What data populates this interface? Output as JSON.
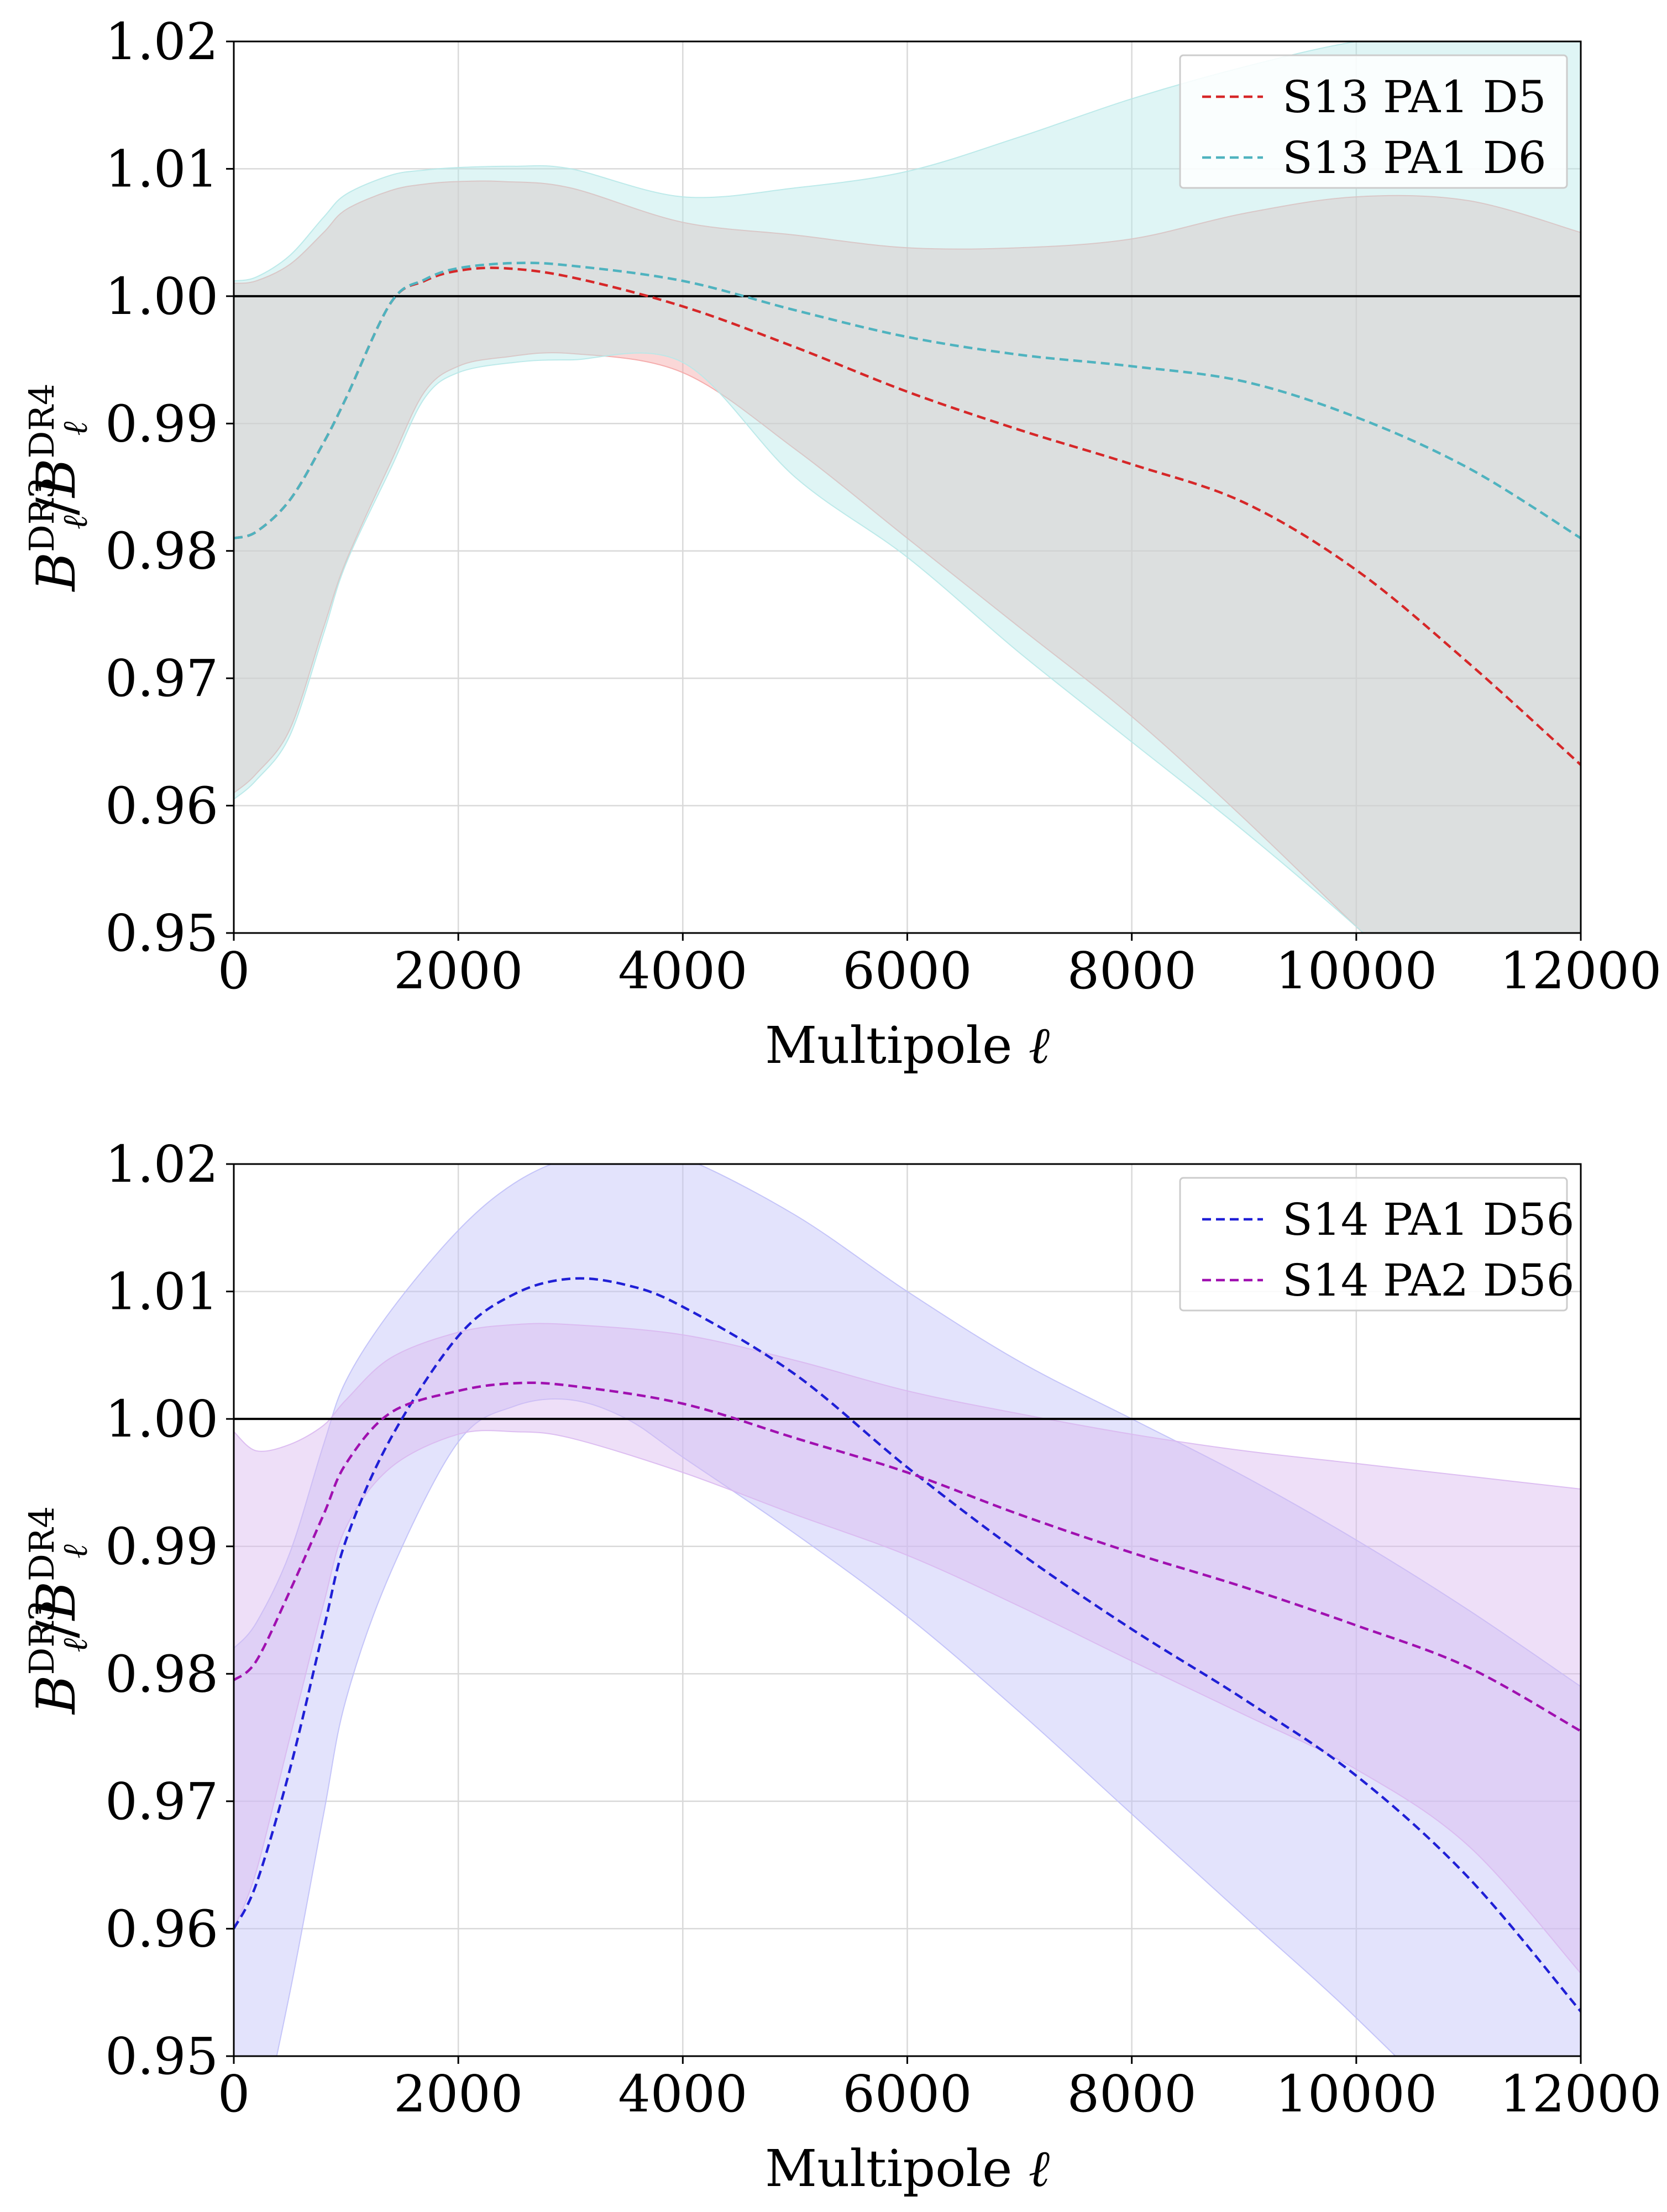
{
  "chart_data": [
    {
      "type": "line",
      "xlabel": "Multipole",
      "xlabel_symbol": "ℓ",
      "ylabel": {
        "base": "B",
        "sub": "ℓ",
        "sup_num": "DR3",
        "sup_den": "DR4",
        "slash": "/"
      },
      "xlim": [
        0,
        12000
      ],
      "ylim": [
        0.95,
        1.02
      ],
      "x_ticks": [
        0,
        2000,
        4000,
        6000,
        8000,
        10000,
        12000
      ],
      "x_tick_labels": [
        "0",
        "2000",
        "4000",
        "6000",
        "8000",
        "10000",
        "12000"
      ],
      "y_ticks": [
        0.95,
        0.96,
        0.97,
        0.98,
        0.99,
        1.0,
        1.01,
        1.02
      ],
      "y_tick_labels": [
        "0.95",
        "0.96",
        "0.97",
        "0.98",
        "0.99",
        "1.00",
        "1.01",
        "1.02"
      ],
      "grid": true,
      "reference_line": 1.0,
      "legend_position": "upper-right",
      "series": [
        {
          "name": "S13 PA1 D5",
          "color": "#d62728",
          "band_color": "#f4a6a6",
          "x": [
            0,
            200,
            500,
            800,
            1000,
            1400,
            1700,
            2000,
            2400,
            3000,
            4000,
            5000,
            6000,
            7000,
            8000,
            9000,
            10000,
            11000,
            12000
          ],
          "values": [
            0.981,
            0.9815,
            0.984,
            0.9885,
            0.992,
            0.9995,
            1.0012,
            1.002,
            1.0022,
            1.0015,
            0.9992,
            0.996,
            0.9925,
            0.9895,
            0.9868,
            0.9838,
            0.9785,
            0.9712,
            0.9632
          ],
          "upper": [
            1.001,
            1.0012,
            1.0025,
            1.005,
            1.0068,
            1.0083,
            1.0088,
            1.009,
            1.009,
            1.0085,
            1.0058,
            1.0048,
            1.0038,
            1.0038,
            1.0045,
            1.0065,
            1.0078,
            1.0075,
            1.005
          ],
          "lower": [
            0.961,
            0.9625,
            0.966,
            0.974,
            0.9792,
            0.987,
            0.9925,
            0.9945,
            0.9952,
            0.9955,
            0.994,
            0.988,
            0.981,
            0.974,
            0.967,
            0.959,
            0.9505,
            0.942,
            0.932
          ]
        },
        {
          "name": "S13 PA1 D6",
          "color": "#4fb3bf",
          "band_color": "#b7e8e8",
          "x": [
            0,
            200,
            500,
            800,
            1000,
            1400,
            1700,
            2000,
            2500,
            3000,
            4000,
            5000,
            6000,
            7000,
            8000,
            9000,
            10000,
            11000,
            12000
          ],
          "values": [
            0.981,
            0.9815,
            0.984,
            0.9885,
            0.992,
            0.9995,
            1.0013,
            1.0022,
            1.0026,
            1.0024,
            1.0012,
            0.9989,
            0.9968,
            0.9954,
            0.9945,
            0.9933,
            0.9905,
            0.9865,
            0.981
          ],
          "upper": [
            1.0012,
            1.0015,
            1.0032,
            1.0062,
            1.008,
            1.0095,
            1.0099,
            1.0101,
            1.0102,
            1.01,
            1.0078,
            1.0085,
            1.0098,
            1.0125,
            1.0155,
            1.018,
            1.02,
            1.021,
            1.0215
          ],
          "lower": [
            0.9605,
            0.962,
            0.9655,
            0.9735,
            0.979,
            0.9865,
            0.992,
            0.994,
            0.9948,
            0.995,
            0.9948,
            0.9858,
            0.9795,
            0.972,
            0.965,
            0.958,
            0.9505,
            0.9425,
            0.9345
          ]
        }
      ]
    },
    {
      "type": "line",
      "xlabel": "Multipole",
      "xlabel_symbol": "ℓ",
      "ylabel": {
        "base": "B",
        "sub": "ℓ",
        "sup_num": "DR3",
        "sup_den": "DR4",
        "slash": "/"
      },
      "xlim": [
        0,
        12000
      ],
      "ylim": [
        0.95,
        1.02
      ],
      "x_ticks": [
        0,
        2000,
        4000,
        6000,
        8000,
        10000,
        12000
      ],
      "x_tick_labels": [
        "0",
        "2000",
        "4000",
        "6000",
        "8000",
        "10000",
        "12000"
      ],
      "y_ticks": [
        0.95,
        0.96,
        0.97,
        0.98,
        0.99,
        1.0,
        1.01,
        1.02
      ],
      "y_tick_labels": [
        "0.95",
        "0.96",
        "0.97",
        "0.98",
        "0.99",
        "1.00",
        "1.01",
        "1.02"
      ],
      "grid": true,
      "reference_line": 1.0,
      "legend_position": "upper-right",
      "series": [
        {
          "name": "S14 PA1 D56",
          "color": "#1f1fd6",
          "band_color": "#c0c0f8",
          "x": [
            0,
            200,
            500,
            800,
            1000,
            1400,
            2000,
            2500,
            3000,
            3500,
            4000,
            5000,
            6000,
            7000,
            8000,
            9000,
            10000,
            11000,
            12000
          ],
          "values": [
            0.96,
            0.9635,
            0.9725,
            0.9835,
            0.9905,
            0.9985,
            1.0065,
            1.0098,
            1.011,
            1.0105,
            1.0088,
            1.0035,
            0.9962,
            0.9895,
            0.9835,
            0.978,
            0.972,
            0.964,
            0.9535
          ],
          "upper": [
            0.982,
            0.984,
            0.9895,
            0.998,
            1.003,
            1.0085,
            1.0148,
            1.0185,
            1.0205,
            1.021,
            1.0205,
            1.016,
            1.01,
            1.0045,
            1.0,
            0.9955,
            0.9905,
            0.985,
            0.979
          ],
          "lower": [
            0.938,
            0.943,
            0.955,
            0.969,
            0.978,
            0.988,
            0.9982,
            1.001,
            1.0015,
            1.0,
            0.997,
            0.991,
            0.9845,
            0.977,
            0.969,
            0.961,
            0.953,
            0.944,
            0.933
          ]
        },
        {
          "name": "S14 PA2 D56",
          "color": "#a010b0",
          "band_color": "#d9b8f0",
          "x": [
            0,
            200,
            500,
            800,
            1000,
            1400,
            2000,
            2500,
            3000,
            4000,
            5000,
            6000,
            7000,
            8000,
            9000,
            10000,
            11000,
            12000
          ],
          "values": [
            0.9795,
            0.981,
            0.9865,
            0.9925,
            0.9965,
            1.0005,
            1.0022,
            1.0028,
            1.0026,
            1.0012,
            0.9985,
            0.9958,
            0.9925,
            0.9895,
            0.9868,
            0.9838,
            0.9805,
            0.9755
          ],
          "upper": [
            0.999,
            0.9975,
            0.998,
            0.9995,
            1.0015,
            1.0048,
            1.0068,
            1.0074,
            1.0074,
            1.0066,
            1.0046,
            1.0022,
            1.0004,
            0.9988,
            0.9975,
            0.9965,
            0.9955,
            0.9945
          ],
          "lower": [
            0.96,
            0.9645,
            0.975,
            0.9855,
            0.9915,
            0.9962,
            0.9988,
            0.999,
            0.9985,
            0.9958,
            0.9925,
            0.9893,
            0.9853,
            0.981,
            0.9768,
            0.9725,
            0.9665,
            0.9565
          ]
        }
      ]
    }
  ]
}
